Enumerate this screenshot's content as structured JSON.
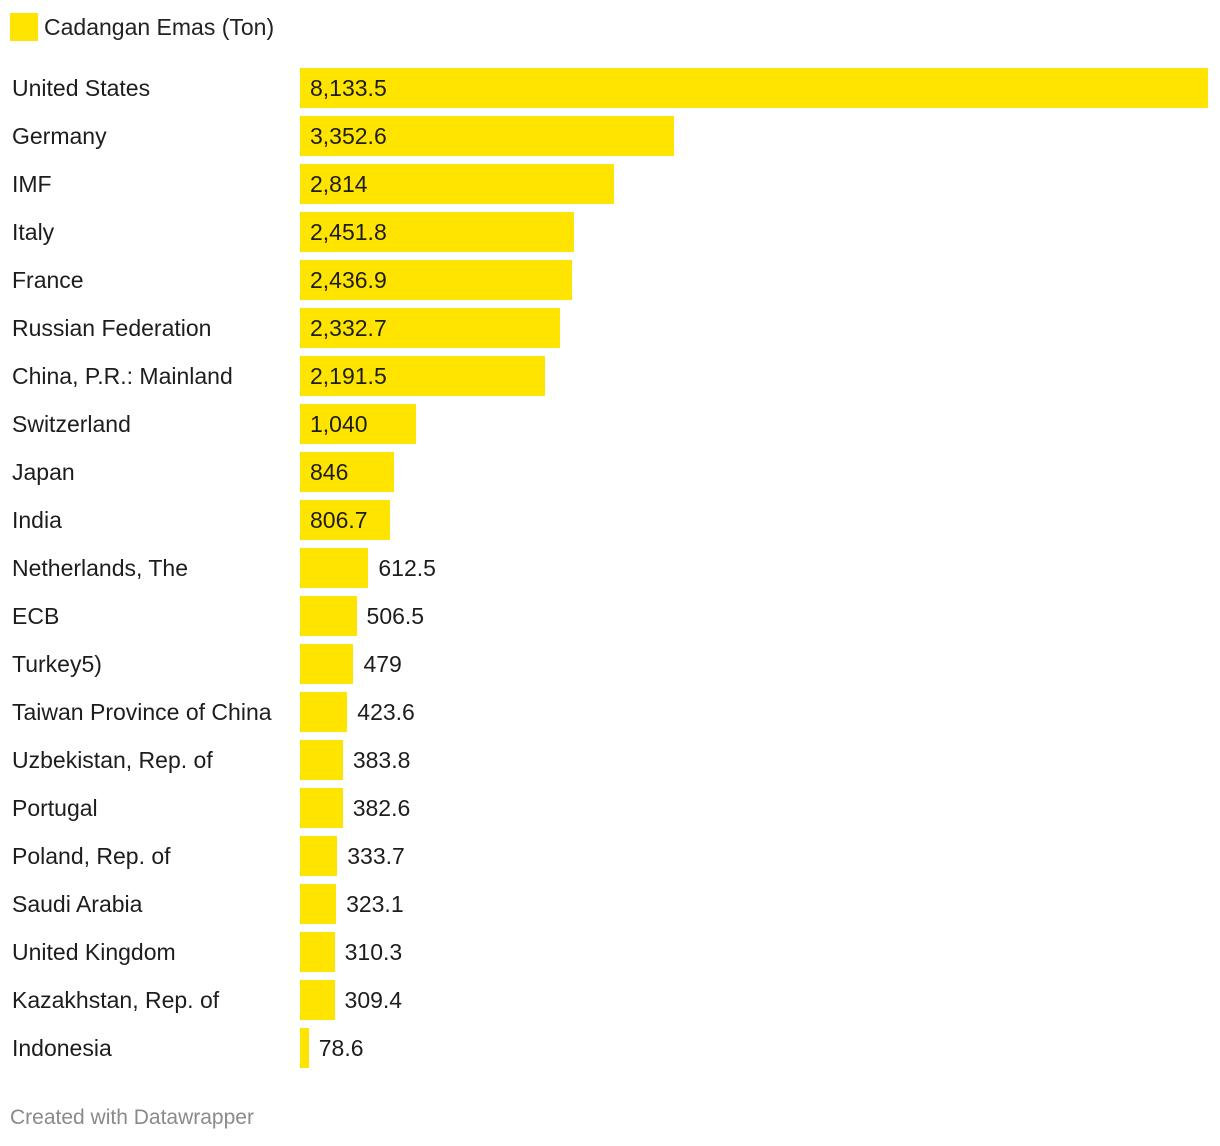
{
  "legend": {
    "label": "Cadangan Emas (Ton)"
  },
  "credit": "Created with Datawrapper",
  "colors": {
    "bar": "#FFE400",
    "text": "#1d1d1d",
    "credit": "#8a8a8a"
  },
  "chart_data": {
    "type": "bar",
    "orientation": "horizontal",
    "title": "",
    "xlabel": "",
    "ylabel": "",
    "grid": false,
    "legend_position": "top-left",
    "xlim": [
      0,
      8133.5
    ],
    "series": [
      {
        "name": "Cadangan Emas (Ton)",
        "color": "#FFE400"
      }
    ],
    "categories": [
      "United States",
      "Germany",
      "IMF",
      "Italy",
      "France",
      "Russian Federation",
      "China, P.R.: Mainland",
      "Switzerland",
      "Japan",
      "India",
      "Netherlands, The",
      "ECB",
      "Turkey5)",
      "Taiwan Province of China",
      "Uzbekistan, Rep. of",
      "Portugal",
      "Poland, Rep. of",
      "Saudi Arabia",
      "United Kingdom",
      "Kazakhstan, Rep. of",
      "Indonesia"
    ],
    "values": [
      8133.5,
      3352.6,
      2814,
      2451.8,
      2436.9,
      2332.7,
      2191.5,
      1040,
      846,
      806.7,
      612.5,
      506.5,
      479,
      423.6,
      383.8,
      382.6,
      333.7,
      323.1,
      310.3,
      309.4,
      78.6
    ],
    "value_labels": [
      "8,133.5",
      "3,352.6",
      "2,814",
      "2,451.8",
      "2,436.9",
      "2,332.7",
      "2,191.5",
      "1,040",
      "846",
      "806.7",
      "612.5",
      "506.5",
      "479",
      "423.6",
      "383.8",
      "382.6",
      "333.7",
      "323.1",
      "310.3",
      "309.4",
      "78.6"
    ]
  }
}
